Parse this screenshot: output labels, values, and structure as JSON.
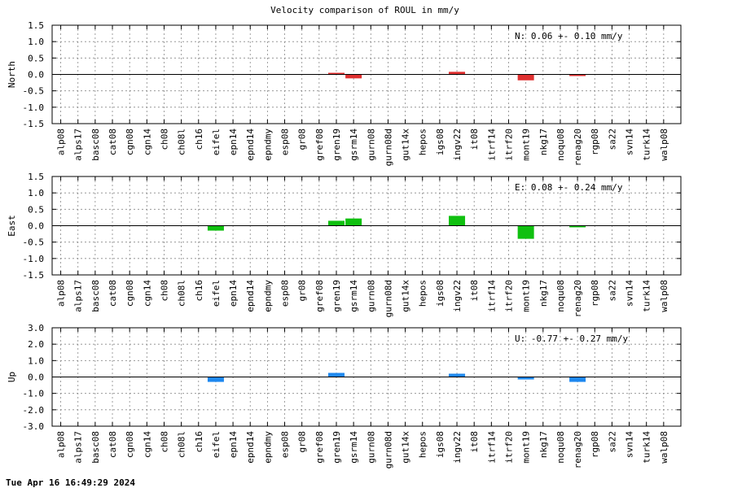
{
  "title": "Velocity comparison of ROUL in mm/y",
  "timestamp": "Tue Apr 16 16:49:29 2024",
  "colors": {
    "North": "#e03131",
    "East": "#10c010",
    "Up": "#1e88f0",
    "axis": "#000000",
    "grid": "#888888"
  },
  "chart_data": [
    {
      "type": "bar",
      "ylabel": "North",
      "summary": "N:   0.06 +-  0.10 mm/y",
      "ylim": [
        -1.5,
        1.5
      ],
      "yticks": [
        1.5,
        1.0,
        0.5,
        0.0,
        -0.5,
        -1.0,
        -1.5
      ],
      "ytick_labels": [
        "1.5",
        "1.0",
        "0.5",
        "0.0",
        "-0.5",
        "-1.0",
        "-1.5"
      ],
      "grid": true,
      "categories": [
        "alp08",
        "alps17",
        "basc08",
        "cat08",
        "cgn08",
        "cgn14",
        "ch08",
        "ch08l",
        "ch16",
        "eifel",
        "epn14",
        "epnd14",
        "epndmy",
        "esp08",
        "gr08",
        "gref08",
        "gren19",
        "gsrm14",
        "gurn08",
        "gurn08d",
        "gut14x",
        "hepos",
        "igs08",
        "ingv22",
        "it08",
        "itrf14",
        "itrf20",
        "mont19",
        "nkg17",
        "noqu08",
        "renag20",
        "rgp08",
        "sa22",
        "svn14",
        "turk14",
        "walp08"
      ],
      "values": [
        null,
        null,
        null,
        null,
        null,
        null,
        null,
        null,
        null,
        null,
        null,
        null,
        null,
        null,
        null,
        null,
        0.02,
        -0.12,
        null,
        null,
        null,
        null,
        null,
        0.08,
        null,
        null,
        null,
        -0.18,
        null,
        null,
        -0.02,
        null,
        null,
        null,
        null,
        null
      ]
    },
    {
      "type": "bar",
      "ylabel": "East",
      "summary": "E:   0.08 +-  0.24 mm/y",
      "ylim": [
        -1.5,
        1.5
      ],
      "yticks": [
        1.5,
        1.0,
        0.5,
        0.0,
        -0.5,
        -1.0,
        -1.5
      ],
      "ytick_labels": [
        "1.5",
        "1.0",
        "0.5",
        "0.0",
        "-0.5",
        "-1.0",
        "-1.5"
      ],
      "grid": true,
      "categories": [
        "alp08",
        "alps17",
        "basc08",
        "cat08",
        "cgn08",
        "cgn14",
        "ch08",
        "ch08l",
        "ch16",
        "eifel",
        "epn14",
        "epnd14",
        "epndmy",
        "esp08",
        "gr08",
        "gref08",
        "gren19",
        "gsrm14",
        "gurn08",
        "gurn08d",
        "gut14x",
        "hepos",
        "igs08",
        "ingv22",
        "it08",
        "itrf14",
        "itrf20",
        "mont19",
        "nkg17",
        "noqu08",
        "renag20",
        "rgp08",
        "sa22",
        "svn14",
        "turk14",
        "walp08"
      ],
      "values": [
        null,
        null,
        null,
        null,
        null,
        null,
        null,
        null,
        null,
        -0.15,
        null,
        null,
        null,
        null,
        null,
        null,
        0.15,
        0.22,
        null,
        null,
        null,
        null,
        null,
        0.3,
        null,
        null,
        null,
        -0.4,
        null,
        null,
        -0.05,
        null,
        null,
        null,
        null,
        null
      ]
    },
    {
      "type": "bar",
      "ylabel": "Up",
      "summary": "U:  -0.77 +-  0.27 mm/y",
      "ylim": [
        -3.0,
        3.0
      ],
      "yticks": [
        3.0,
        2.0,
        1.0,
        0.0,
        -1.0,
        -2.0,
        -3.0
      ],
      "ytick_labels": [
        "3.0",
        "2.0",
        "1.0",
        "0.0",
        "-1.0",
        "-2.0",
        "-3.0"
      ],
      "grid": true,
      "categories": [
        "alp08",
        "alps17",
        "basc08",
        "cat08",
        "cgn08",
        "cgn14",
        "ch08",
        "ch08l",
        "ch16",
        "eifel",
        "epn14",
        "epnd14",
        "epndmy",
        "esp08",
        "gr08",
        "gref08",
        "gren19",
        "gsrm14",
        "gurn08",
        "gurn08d",
        "gut14x",
        "hepos",
        "igs08",
        "ingv22",
        "it08",
        "itrf14",
        "itrf20",
        "mont19",
        "nkg17",
        "noqu08",
        "renag20",
        "rgp08",
        "sa22",
        "svn14",
        "turk14",
        "walp08"
      ],
      "values": [
        null,
        null,
        null,
        null,
        null,
        null,
        null,
        null,
        null,
        -0.3,
        null,
        null,
        null,
        null,
        null,
        null,
        0.25,
        null,
        null,
        null,
        null,
        null,
        null,
        0.2,
        null,
        null,
        null,
        -0.15,
        null,
        null,
        -0.3,
        null,
        null,
        null,
        null,
        null
      ]
    }
  ]
}
